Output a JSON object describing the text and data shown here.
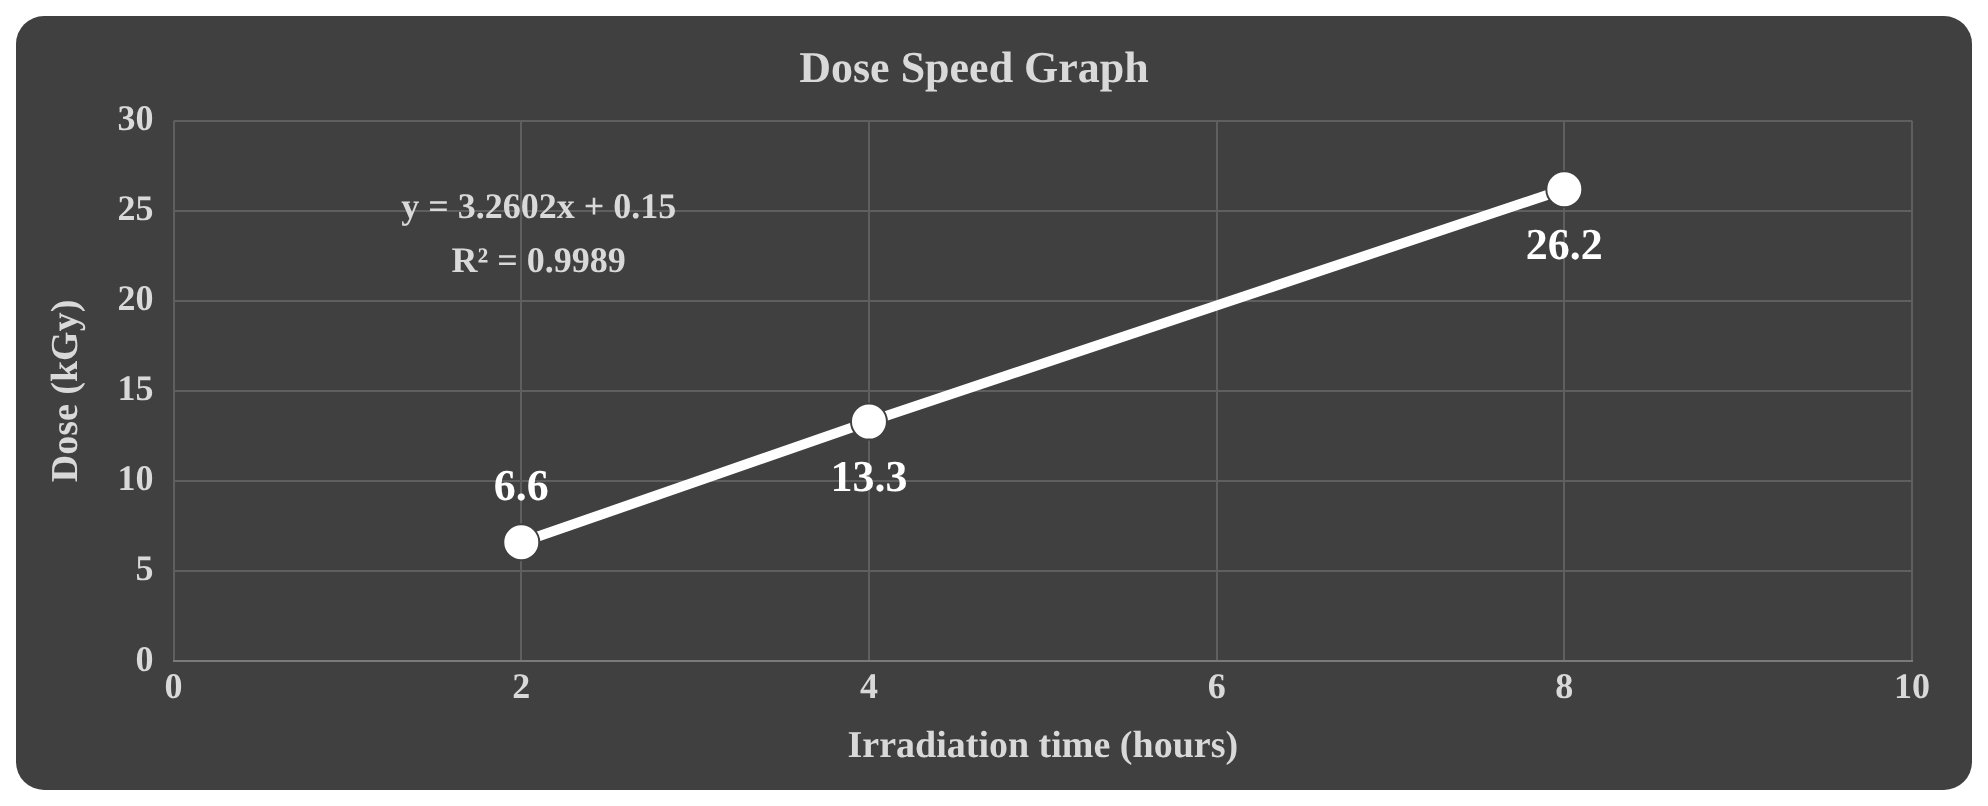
{
  "chart_data": {
    "type": "line",
    "title": "Dose Speed Graph",
    "xlabel": "Irradiation time (hours)",
    "ylabel": "Dose (kGy)",
    "x": [
      2,
      4,
      8
    ],
    "series": [
      {
        "color": "#ffffff",
        "values": [
          6.6,
          13.3,
          26.2
        ]
      }
    ],
    "xlim": [
      0,
      10
    ],
    "xticks": [
      0,
      2,
      4,
      6,
      8,
      10
    ],
    "ylim": [
      0,
      30
    ],
    "yticks": [
      0,
      5,
      10,
      15,
      20,
      25,
      30
    ],
    "annotations": [
      "y = 3.2602x + 0.15",
      "R² = 0.9989"
    ],
    "data_labels": true,
    "grid": true,
    "marker": "circle",
    "line_style": "solid",
    "legend": false
  }
}
